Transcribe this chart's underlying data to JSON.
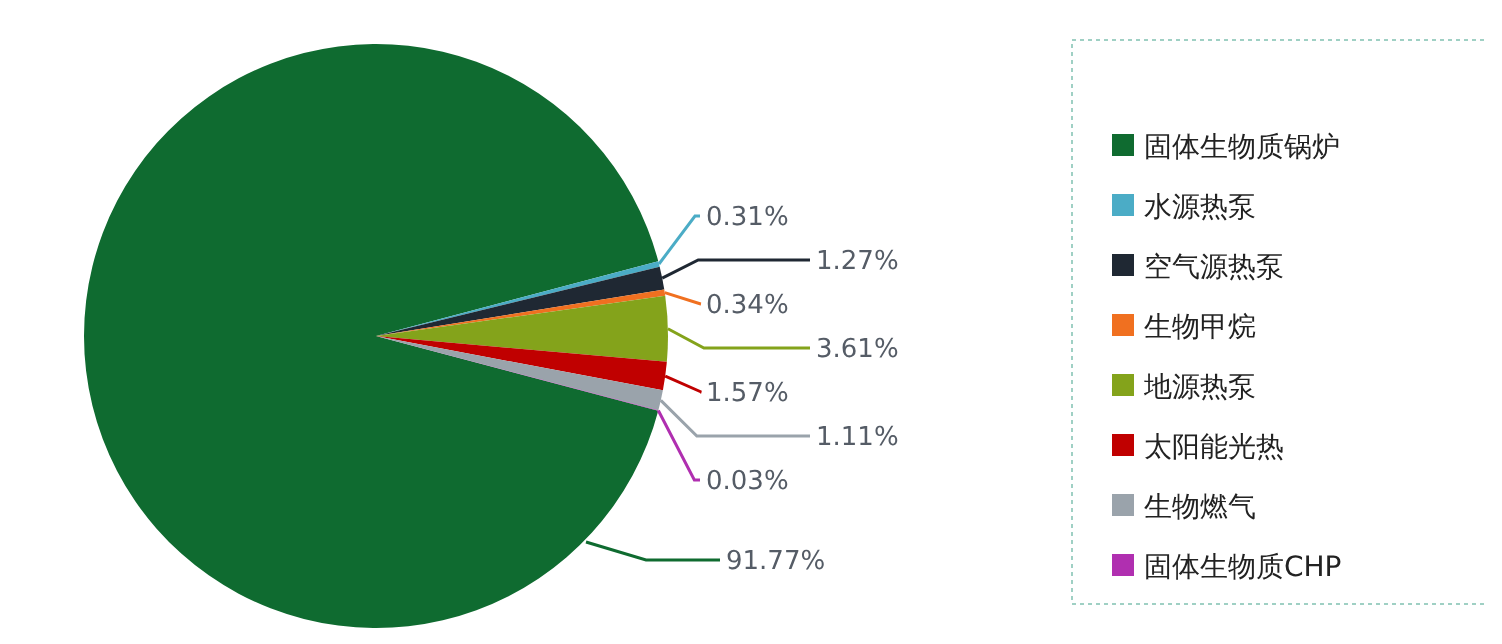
{
  "chart_data": {
    "type": "pie",
    "categories": [
      "固体生物质锅炉",
      "水源热泵",
      "空气源热泵",
      "生物甲烷",
      "地源热泵",
      "太阳能光热",
      "生物燃气",
      "固体生物质CHP"
    ],
    "values": [
      91.77,
      0.31,
      1.27,
      0.34,
      3.61,
      1.57,
      1.11,
      0.03
    ],
    "value_labels": [
      "91.77%",
      "0.31%",
      "1.27%",
      "0.34%",
      "3.61%",
      "1.57%",
      "1.11%",
      "0.03%"
    ],
    "colors": [
      "#0f6b30",
      "#4bacc6",
      "#1f2833",
      "#f07020",
      "#84a31b",
      "#c00000",
      "#9aa3ab",
      "#b02fb0"
    ],
    "legend": "right"
  }
}
